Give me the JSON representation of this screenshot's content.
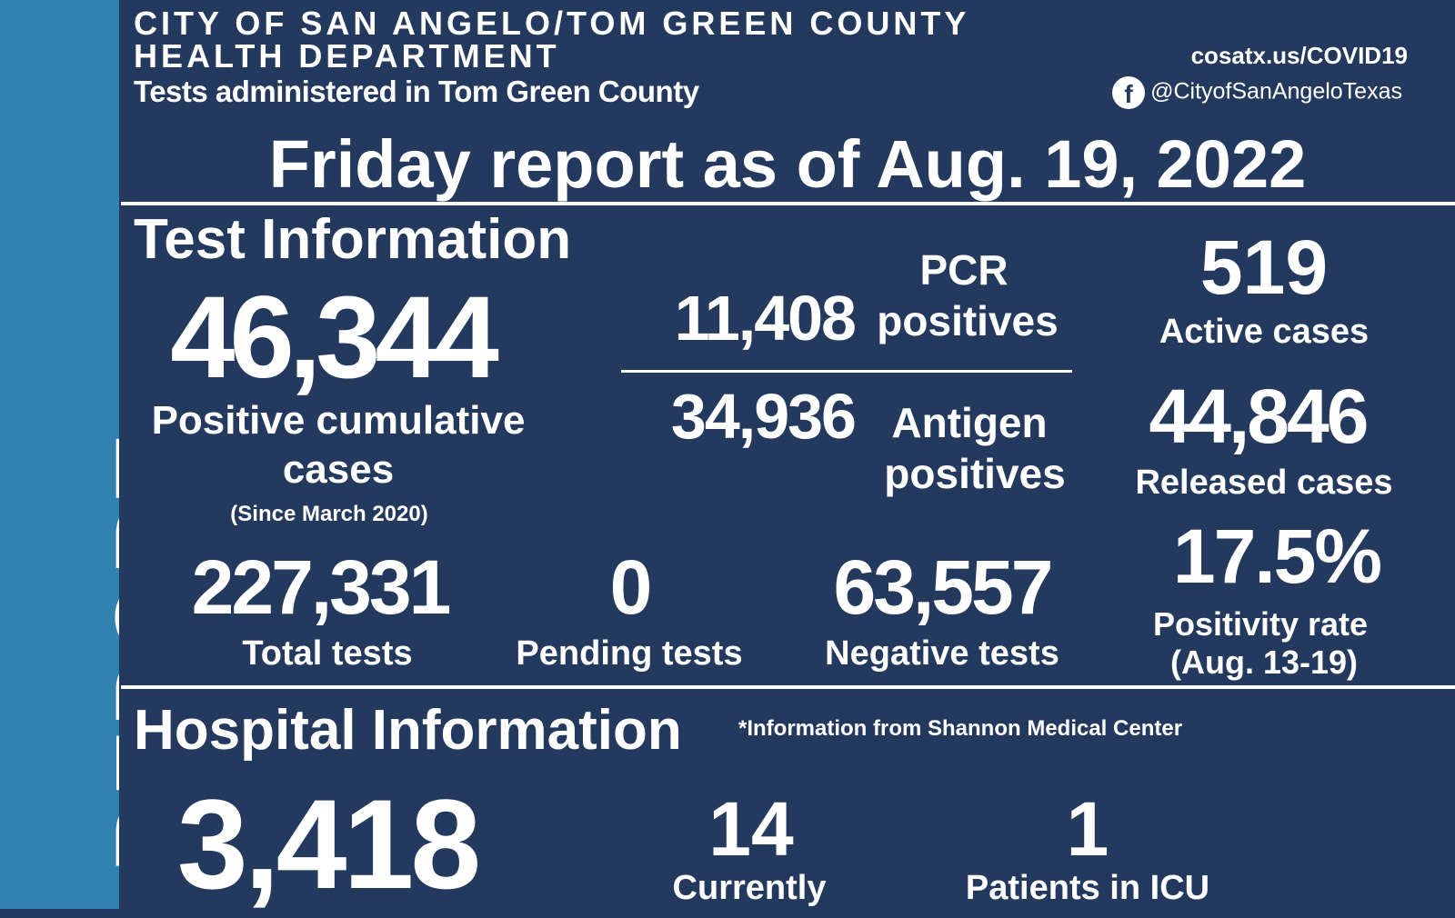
{
  "sidebar": {
    "label": "REPORT"
  },
  "header": {
    "org_line1": "CITY OF SAN ANGELO/TOM GREEN COUNTY",
    "org_line2": "HEALTH DEPARTMENT",
    "subtitle": "Tests administered in Tom Green County",
    "website": "cosatx.us/COVID19",
    "facebook": "@CityofSanAngeloTexas",
    "facebook_icon": "facebook-icon",
    "report_title": "Friday report as of Aug. 19, 2022"
  },
  "tests": {
    "heading": "Test Information",
    "positive_cumulative": {
      "value": "46,344",
      "label1": "Positive cumulative",
      "label2": "cases",
      "note": "(Since March 2020)"
    },
    "pcr": {
      "value": "11,408",
      "label1": "PCR",
      "label2": "positives"
    },
    "antigen": {
      "value": "34,936",
      "label1": "Antigen",
      "label2": "positives"
    },
    "active": {
      "value": "519",
      "label": "Active cases"
    },
    "released": {
      "value": "44,846",
      "label": "Released cases"
    },
    "total": {
      "value": "227,331",
      "label": "Total tests"
    },
    "pending": {
      "value": "0",
      "label": "Pending tests"
    },
    "negative": {
      "value": "63,557",
      "label": "Negative tests"
    },
    "positivity": {
      "value": "17.5%",
      "label1": "Positivity rate",
      "label2": "(Aug. 13-19)"
    }
  },
  "hospital": {
    "heading": "Hospital Information",
    "note": "*Information from Shannon Medical Center",
    "stat1": {
      "value": "3,418"
    },
    "stat2": {
      "value": "14",
      "label": "Currently"
    },
    "stat3": {
      "value": "1",
      "label": "Patients in ICU"
    }
  }
}
